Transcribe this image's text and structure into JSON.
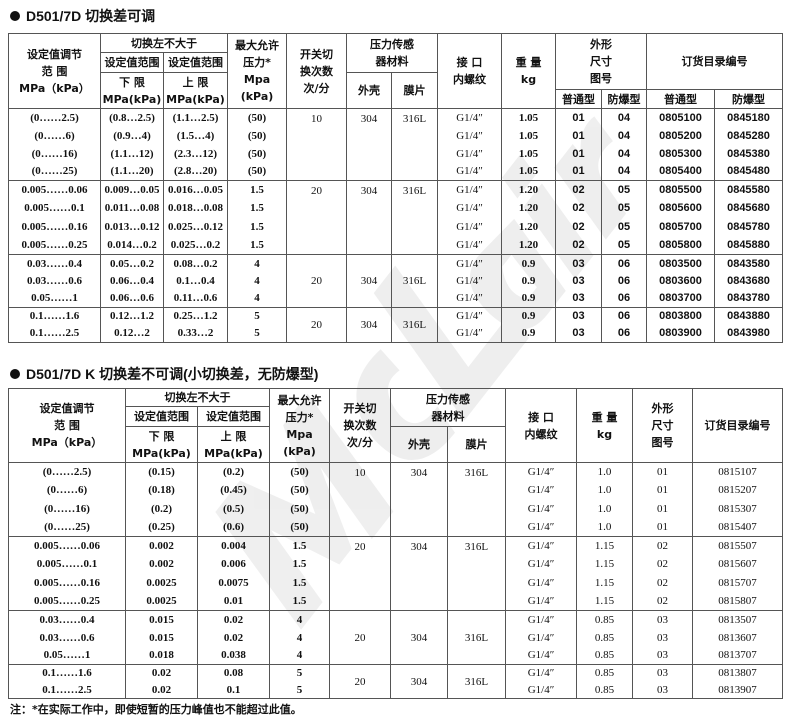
{
  "watermark": "McLair",
  "table1": {
    "title": "D501/7D 切换差可调",
    "headers": {
      "range": "设定值调节\n范  围\nMPa（kPa）",
      "switch_diff": "切换左不大于",
      "lower_top": "设定值范围",
      "lower": "下    限\nMPa(kPa)",
      "upper_top": "设定值范围",
      "upper": "上    限\nMPa(kPa)",
      "max_pressure": "最大允许\n压力*\nMpa\n(kPa)",
      "cycles": "开关切\n换次数\n次/分",
      "sensor_material": "压力传感\n器材料",
      "shell": "外壳",
      "diaphragm": "膜片",
      "thread": "接  口\n内螺纹",
      "weight": "重  量\nkg",
      "dimension": "外形\n尺寸\n图号",
      "order_no": "订货目录编号",
      "standard": "普通型",
      "explosion_proof": "防爆型",
      "standard2": "普通型",
      "explosion_proof2": "防爆型"
    },
    "groups": [
      {
        "cycles": "10",
        "shell": "304",
        "diaphragm": "316L",
        "rows": [
          {
            "range": "(0……2.5)",
            "lower": "(0.8…2.5)",
            "upper": "(1.1…2.5)",
            "max": "(50)",
            "thread": "G1/4″",
            "weight": "1.05",
            "dim_std": "01",
            "dim_ex": "04",
            "order_std": "0805100",
            "order_ex": "0845180"
          },
          {
            "range": "(0……6)",
            "lower": "(0.9…4)",
            "upper": "(1.5…4)",
            "max": "(50)",
            "thread": "G1/4″",
            "weight": "1.05",
            "dim_std": "01",
            "dim_ex": "04",
            "order_std": "0805200",
            "order_ex": "0845280"
          },
          {
            "range": "(0……16)",
            "lower": "(1.1…12)",
            "upper": "(2.3…12)",
            "max": "(50)",
            "thread": "G1/4″",
            "weight": "1.05",
            "dim_std": "01",
            "dim_ex": "04",
            "order_std": "0805300",
            "order_ex": "0845380"
          },
          {
            "range": "(0……25)",
            "lower": "(1.1…20)",
            "upper": "(2.8…20)",
            "max": "(50)",
            "thread": "G1/4″",
            "weight": "1.05",
            "dim_std": "01",
            "dim_ex": "04",
            "order_std": "0805400",
            "order_ex": "0845480"
          }
        ]
      },
      {
        "cycles": "20",
        "shell": "304",
        "diaphragm": "316L",
        "rows": [
          {
            "range": "0.005……0.06",
            "lower": "0.009…0.05",
            "upper": "0.016…0.05",
            "max": "1.5",
            "thread": "G1/4″",
            "weight": "1.20",
            "dim_std": "02",
            "dim_ex": "05",
            "order_std": "0805500",
            "order_ex": "0845580"
          },
          {
            "range": "0.005……0.1",
            "lower": "0.011…0.08",
            "upper": "0.018…0.08",
            "max": "1.5",
            "thread": "G1/4″",
            "weight": "1.20",
            "dim_std": "02",
            "dim_ex": "05",
            "order_std": "0805600",
            "order_ex": "0845680"
          },
          {
            "range": "0.005……0.16",
            "lower": "0.013…0.12",
            "upper": "0.025…0.12",
            "max": "1.5",
            "thread": "G1/4″",
            "weight": "1.20",
            "dim_std": "02",
            "dim_ex": "05",
            "order_std": "0805700",
            "order_ex": "0845780"
          },
          {
            "range": "0.005……0.25",
            "lower": "0.014…0.2",
            "upper": "0.025…0.2",
            "max": "1.5",
            "thread": "G1/4″",
            "weight": "1.20",
            "dim_std": "02",
            "dim_ex": "05",
            "order_std": "0805800",
            "order_ex": "0845880"
          }
        ]
      },
      {
        "cycles": "20",
        "shell": "304",
        "diaphragm": "316L",
        "rows": [
          {
            "range": "0.03……0.4",
            "lower": "0.05…0.2",
            "upper": "0.08…0.2",
            "max": "4",
            "thread": "G1/4″",
            "weight": "0.9",
            "dim_std": "03",
            "dim_ex": "06",
            "order_std": "0803500",
            "order_ex": "0843580"
          },
          {
            "range": "0.03……0.6",
            "lower": "0.06…0.4",
            "upper": "0.1…0.4",
            "max": "4",
            "thread": "G1/4″",
            "weight": "0.9",
            "dim_std": "03",
            "dim_ex": "06",
            "order_std": "0803600",
            "order_ex": "0843680"
          },
          {
            "range": "0.05……1",
            "lower": "0.06…0.6",
            "upper": "0.11…0.6",
            "max": "4",
            "thread": "G1/4″",
            "weight": "0.9",
            "dim_std": "03",
            "dim_ex": "06",
            "order_std": "0803700",
            "order_ex": "0843780"
          }
        ]
      },
      {
        "cycles": "20",
        "shell": "304",
        "diaphragm": "316L",
        "rows": [
          {
            "range": "0.1……1.6",
            "lower": "0.12…1.2",
            "upper": "0.25…1.2",
            "max": "5",
            "thread": "G1/4″",
            "weight": "0.9",
            "dim_std": "03",
            "dim_ex": "06",
            "order_std": "0803800",
            "order_ex": "0843880"
          },
          {
            "range": "0.1……2.5",
            "lower": "0.12…2",
            "upper": "0.33…2",
            "max": "5",
            "thread": "G1/4″",
            "weight": "0.9",
            "dim_std": "03",
            "dim_ex": "06",
            "order_std": "0803900",
            "order_ex": "0843980"
          }
        ]
      }
    ]
  },
  "table2": {
    "title": "D501/7D K 切换差不可调(小切换差，无防爆型)",
    "headers": {
      "range": "设定值调节\n范  围\nMPa（kPa）",
      "switch_diff": "切换左不大于",
      "lower_top": "设定值范围",
      "lower": "下    限\nMPa(kPa)",
      "upper_top": "设定值范围",
      "upper": "上    限\nMPa(kPa)",
      "max_pressure": "最大允许\n压力*\nMpa\n(kPa)",
      "cycles": "开关切\n换次数\n次/分",
      "sensor_material": "压力传感\n器材料",
      "shell": "外壳",
      "diaphragm": "膜片",
      "thread": "接  口\n内螺纹",
      "weight": "重  量\nkg",
      "dimension": "外形\n尺寸\n图号",
      "order_no": "订货目录编号"
    },
    "groups": [
      {
        "cycles": "10",
        "shell": "304",
        "diaphragm": "316L",
        "rows": [
          {
            "range": "(0……2.5)",
            "lower": "(0.15)",
            "upper": "(0.2)",
            "max": "(50)",
            "thread": "G1/4″",
            "weight": "1.0",
            "dim": "01",
            "order": "0815107"
          },
          {
            "range": "(0……6)",
            "lower": "(0.18)",
            "upper": "(0.45)",
            "max": "(50)",
            "thread": "G1/4″",
            "weight": "1.0",
            "dim": "01",
            "order": "0815207"
          },
          {
            "range": "(0……16)",
            "lower": "(0.2)",
            "upper": "(0.5)",
            "max": "(50)",
            "thread": "G1/4″",
            "weight": "1.0",
            "dim": "01",
            "order": "0815307"
          },
          {
            "range": "(0……25)",
            "lower": "(0.25)",
            "upper": "(0.6)",
            "max": "(50)",
            "thread": "G1/4″",
            "weight": "1.0",
            "dim": "01",
            "order": "0815407"
          }
        ]
      },
      {
        "cycles": "20",
        "shell": "304",
        "diaphragm": "316L",
        "rows": [
          {
            "range": "0.005……0.06",
            "lower": "0.002",
            "upper": "0.004",
            "max": "1.5",
            "thread": "G1/4″",
            "weight": "1.15",
            "dim": "02",
            "order": "0815507"
          },
          {
            "range": "0.005……0.1",
            "lower": "0.002",
            "upper": "0.006",
            "max": "1.5",
            "thread": "G1/4″",
            "weight": "1.15",
            "dim": "02",
            "order": "0815607"
          },
          {
            "range": "0.005……0.16",
            "lower": "0.0025",
            "upper": "0.0075",
            "max": "1.5",
            "thread": "G1/4″",
            "weight": "1.15",
            "dim": "02",
            "order": "0815707"
          },
          {
            "range": "0.005……0.25",
            "lower": "0.0025",
            "upper": "0.01",
            "max": "1.5",
            "thread": "G1/4″",
            "weight": "1.15",
            "dim": "02",
            "order": "0815807"
          }
        ]
      },
      {
        "cycles": "20",
        "shell": "304",
        "diaphragm": "316L",
        "rows": [
          {
            "range": "0.03……0.4",
            "lower": "0.015",
            "upper": "0.02",
            "max": "4",
            "thread": "G1/4″",
            "weight": "0.85",
            "dim": "03",
            "order": "0813507"
          },
          {
            "range": "0.03……0.6",
            "lower": "0.015",
            "upper": "0.02",
            "max": "4",
            "thread": "G1/4″",
            "weight": "0.85",
            "dim": "03",
            "order": "0813607"
          },
          {
            "range": "0.05……1",
            "lower": "0.018",
            "upper": "0.038",
            "max": "4",
            "thread": "G1/4″",
            "weight": "0.85",
            "dim": "03",
            "order": "0813707"
          }
        ]
      },
      {
        "cycles": "20",
        "shell": "304",
        "diaphragm": "316L",
        "rows": [
          {
            "range": "0.1……1.6",
            "lower": "0.02",
            "upper": "0.08",
            "max": "5",
            "thread": "G1/4″",
            "weight": "0.85",
            "dim": "03",
            "order": "0813807"
          },
          {
            "range": "0.1……2.5",
            "lower": "0.02",
            "upper": "0.1",
            "max": "5",
            "thread": "G1/4″",
            "weight": "0.85",
            "dim": "03",
            "order": "0813907"
          }
        ]
      }
    ]
  },
  "footnote": "注：*在实际工作中，即使短暂的压力峰值也不能超过此值。"
}
